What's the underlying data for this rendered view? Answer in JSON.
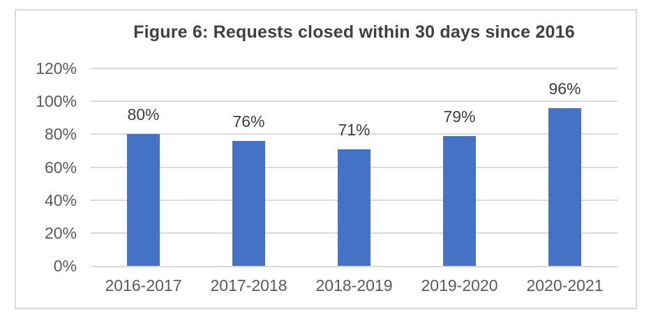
{
  "chart_data": {
    "type": "bar",
    "title": "Figure 6: Requests closed within 30 days since 2016",
    "categories": [
      "2016-2017",
      "2017-2018",
      "2018-2019",
      "2019-2020",
      "2020-2021"
    ],
    "values": [
      80,
      76,
      71,
      79,
      96
    ],
    "data_labels": [
      "80%",
      "76%",
      "71%",
      "79%",
      "96%"
    ],
    "yticks": [
      0,
      20,
      40,
      60,
      80,
      100,
      120
    ],
    "ytick_labels": [
      "0%",
      "20%",
      "40%",
      "60%",
      "80%",
      "100%",
      "120%"
    ],
    "ylim": [
      0,
      120
    ],
    "xlabel": "",
    "ylabel": "",
    "grid": true,
    "legend": false,
    "colors": {
      "bar": "#4472C4",
      "gridline": "#D9D9D9",
      "frame_border": "#D9D9D9",
      "axis_text": "#595959",
      "data_label_text": "#3d3d3d",
      "title_text": "#404040",
      "background": "#FFFFFF"
    }
  }
}
